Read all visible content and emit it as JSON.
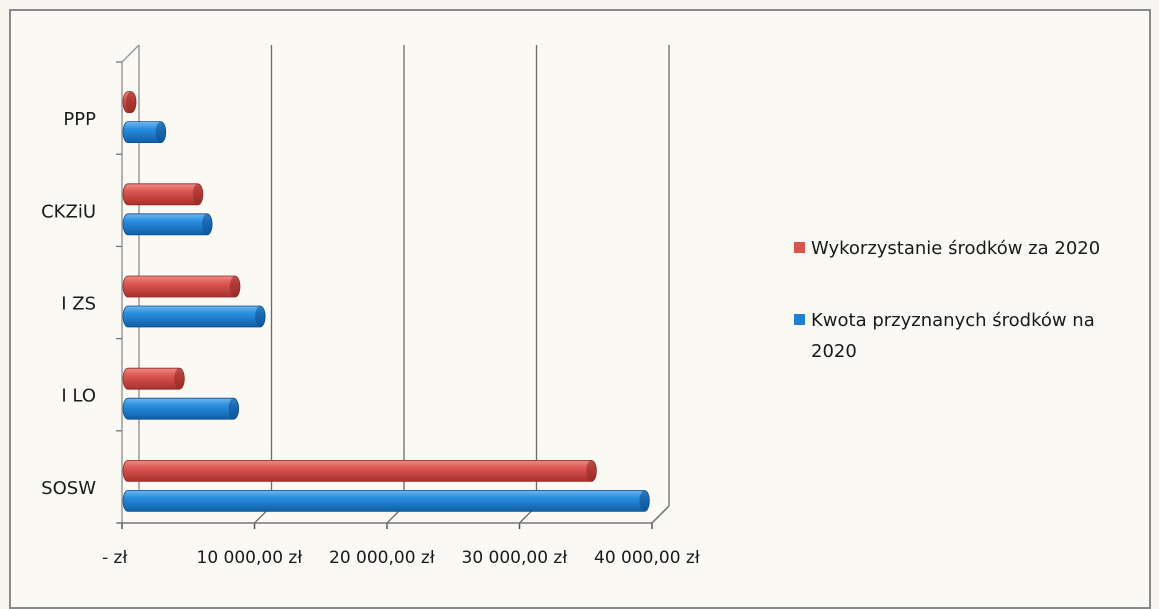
{
  "chart_data": {
    "type": "bar",
    "orientation": "horizontal",
    "style": "3d-cylinder",
    "categories": [
      "SOSW",
      "I LO",
      "I ZS",
      "CKZiU",
      "PPP"
    ],
    "series": [
      {
        "name": "Kwota przyznanych środków na 2020",
        "color": "#1f7fd0",
        "values": [
          39500,
          8500,
          10500,
          6500,
          3000
        ]
      },
      {
        "name": "Wykorzystanie środków za 2020",
        "color": "#d9534f",
        "values": [
          35500,
          4400,
          8600,
          5800,
          600
        ]
      }
    ],
    "x_ticks": [
      "-   zł",
      "10 000,00 zł",
      "20 000,00 zł",
      "30 000,00 zł",
      "40 000,00 zł"
    ],
    "xlim": [
      0,
      40000
    ],
    "grid": true,
    "legend_position": "right"
  },
  "legend": {
    "item1": {
      "name": "Wykorzystanie środków za 2020",
      "color": "#d9534f"
    },
    "item2": {
      "name_line1": "Kwota przyznanych środków na",
      "name_line2": "2020",
      "color": "#1f7fd0"
    }
  }
}
